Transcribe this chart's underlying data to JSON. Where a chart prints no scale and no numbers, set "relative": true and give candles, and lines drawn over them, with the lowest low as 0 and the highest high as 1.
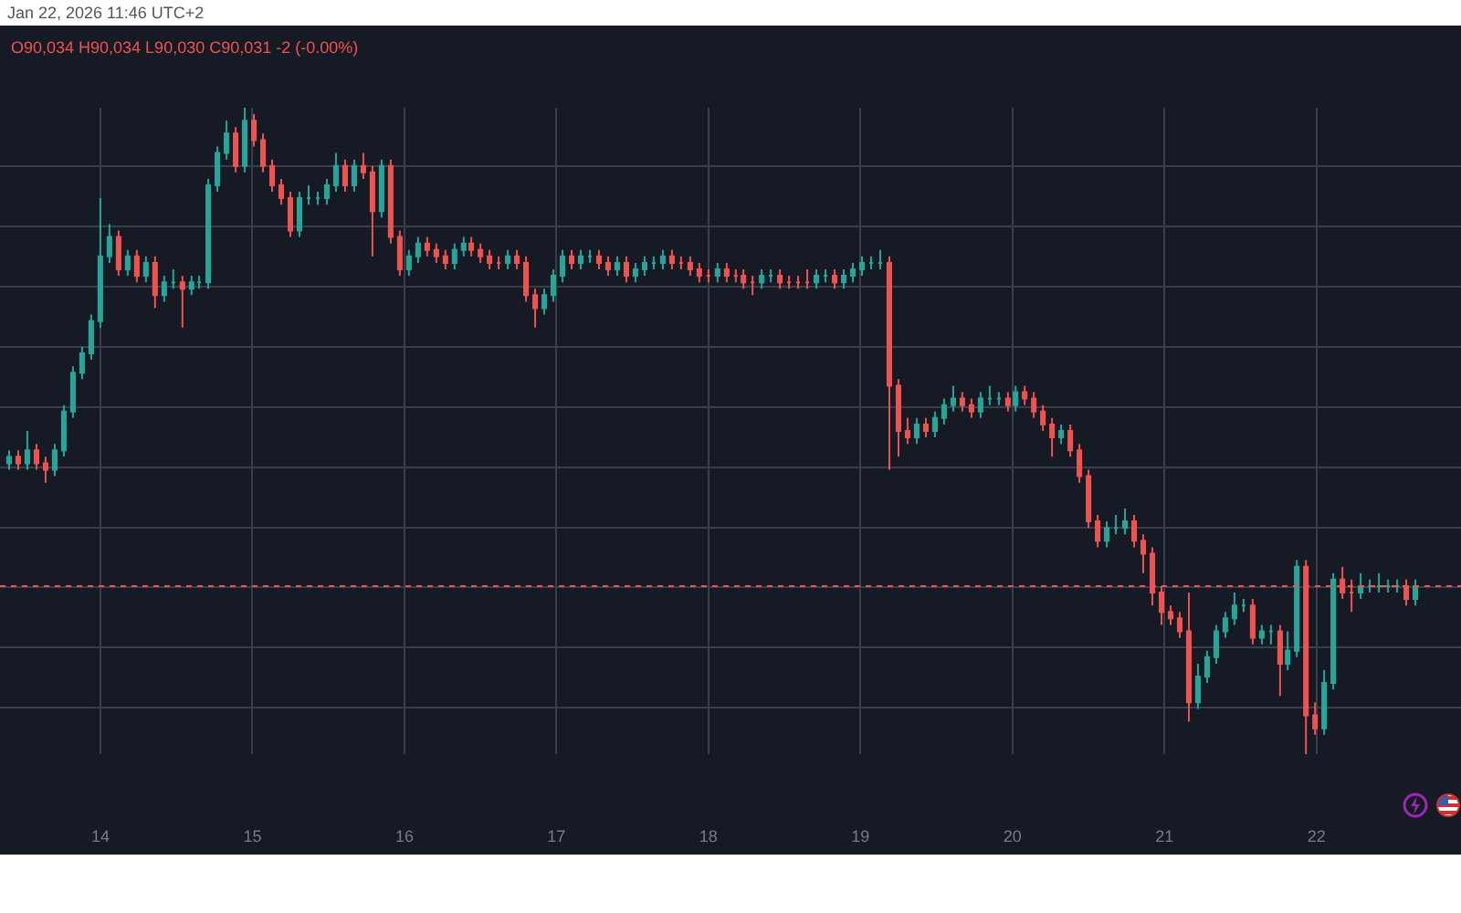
{
  "chart_data": {
    "type": "candlestick",
    "title": "Jan 22, 2026 11:46 UTC+2",
    "relative": true,
    "grid": true,
    "annotations": [
      "O90,034 H90,034 L90,030 C90,031 -2 (-0.00%)"
    ],
    "xlim": [
      13.34,
      22.95
    ],
    "xticks": [
      14,
      15,
      16,
      17,
      18,
      19,
      20,
      21,
      22
    ],
    "ref_lines": [
      {
        "axis": "y",
        "value": 0.26,
        "color": "#ef5350",
        "line_style": "dotted"
      }
    ],
    "x": [
      13.4,
      13.46,
      13.52,
      13.58,
      13.64,
      13.7,
      13.76,
      13.82,
      13.88,
      13.94,
      14.0,
      14.06,
      14.12,
      14.18,
      14.24,
      14.3,
      14.36,
      14.42,
      14.48,
      14.54,
      14.6,
      14.65,
      14.71,
      14.77,
      14.83,
      14.89,
      14.95,
      15.01,
      15.07,
      15.13,
      15.19,
      15.25,
      15.31,
      15.37,
      15.43,
      15.49,
      15.55,
      15.61,
      15.67,
      15.73,
      15.79,
      15.85,
      15.91,
      15.97,
      16.03,
      16.09,
      16.15,
      16.21,
      16.27,
      16.33,
      16.39,
      16.44,
      16.5,
      16.56,
      16.62,
      16.68,
      16.74,
      16.8,
      16.86,
      16.92,
      16.98,
      17.04,
      17.1,
      17.16,
      17.22,
      17.28,
      17.34,
      17.4,
      17.46,
      17.52,
      17.58,
      17.64,
      17.7,
      17.76,
      17.82,
      17.88,
      17.94,
      18.0,
      18.06,
      18.12,
      18.18,
      18.23,
      18.29,
      18.35,
      18.41,
      18.47,
      18.53,
      18.59,
      18.65,
      18.71,
      18.77,
      18.83,
      18.89,
      18.95,
      19.01,
      19.07,
      19.13,
      19.19,
      19.25,
      19.31,
      19.37,
      19.43,
      19.49,
      19.55,
      19.61,
      19.67,
      19.73,
      19.79,
      19.85,
      19.91,
      19.97,
      20.02,
      20.08,
      20.14,
      20.2,
      20.26,
      20.32,
      20.38,
      20.44,
      20.5,
      20.56,
      20.62,
      20.68,
      20.74,
      20.8,
      20.86,
      20.92,
      20.98,
      21.04,
      21.1,
      21.16,
      21.22,
      21.28,
      21.34,
      21.4,
      21.46,
      21.52,
      21.58,
      21.64,
      21.7,
      21.76,
      21.81,
      21.87,
      21.93,
      21.99,
      22.05,
      22.11,
      22.17,
      22.23,
      22.29,
      22.35,
      22.41,
      22.47,
      22.53,
      22.59,
      22.65
    ],
    "ohlc": [
      [
        0.45,
        0.47,
        0.44,
        0.46
      ],
      [
        0.46,
        0.47,
        0.44,
        0.45
      ],
      [
        0.45,
        0.5,
        0.44,
        0.47
      ],
      [
        0.47,
        0.48,
        0.44,
        0.45
      ],
      [
        0.45,
        0.46,
        0.42,
        0.44
      ],
      [
        0.44,
        0.48,
        0.43,
        0.47
      ],
      [
        0.47,
        0.54,
        0.46,
        0.53
      ],
      [
        0.53,
        0.6,
        0.52,
        0.59
      ],
      [
        0.59,
        0.63,
        0.58,
        0.62
      ],
      [
        0.62,
        0.68,
        0.61,
        0.67
      ],
      [
        0.67,
        0.86,
        0.66,
        0.77
      ],
      [
        0.77,
        0.82,
        0.76,
        0.8
      ],
      [
        0.8,
        0.81,
        0.74,
        0.75
      ],
      [
        0.75,
        0.78,
        0.74,
        0.77
      ],
      [
        0.77,
        0.78,
        0.73,
        0.74
      ],
      [
        0.74,
        0.77,
        0.73,
        0.76
      ],
      [
        0.76,
        0.77,
        0.69,
        0.71
      ],
      [
        0.71,
        0.74,
        0.7,
        0.73
      ],
      [
        0.73,
        0.75,
        0.72,
        0.73
      ],
      [
        0.73,
        0.74,
        0.66,
        0.72
      ],
      [
        0.72,
        0.74,
        0.71,
        0.73
      ],
      [
        0.73,
        0.74,
        0.72,
        0.73
      ],
      [
        0.73,
        0.89,
        0.72,
        0.88
      ],
      [
        0.88,
        0.94,
        0.87,
        0.93
      ],
      [
        0.93,
        0.98,
        0.92,
        0.96
      ],
      [
        0.96,
        0.97,
        0.9,
        0.91
      ],
      [
        0.91,
        1.0,
        0.9,
        0.98
      ],
      [
        0.98,
        0.99,
        0.94,
        0.95
      ],
      [
        0.95,
        0.96,
        0.9,
        0.91
      ],
      [
        0.91,
        0.92,
        0.87,
        0.88
      ],
      [
        0.88,
        0.89,
        0.85,
        0.86
      ],
      [
        0.86,
        0.87,
        0.8,
        0.81
      ],
      [
        0.81,
        0.87,
        0.8,
        0.86
      ],
      [
        0.86,
        0.88,
        0.85,
        0.86
      ],
      [
        0.86,
        0.87,
        0.85,
        0.86
      ],
      [
        0.86,
        0.89,
        0.85,
        0.88
      ],
      [
        0.88,
        0.93,
        0.87,
        0.91
      ],
      [
        0.91,
        0.92,
        0.87,
        0.88
      ],
      [
        0.88,
        0.92,
        0.87,
        0.91
      ],
      [
        0.91,
        0.93,
        0.89,
        0.9
      ],
      [
        0.9,
        0.91,
        0.77,
        0.84
      ],
      [
        0.84,
        0.92,
        0.83,
        0.91
      ],
      [
        0.91,
        0.92,
        0.79,
        0.8
      ],
      [
        0.8,
        0.81,
        0.74,
        0.75
      ],
      [
        0.75,
        0.78,
        0.74,
        0.77
      ],
      [
        0.77,
        0.8,
        0.76,
        0.79
      ],
      [
        0.79,
        0.8,
        0.77,
        0.78
      ],
      [
        0.78,
        0.79,
        0.76,
        0.77
      ],
      [
        0.77,
        0.78,
        0.75,
        0.76
      ],
      [
        0.76,
        0.79,
        0.75,
        0.78
      ],
      [
        0.78,
        0.8,
        0.77,
        0.79
      ],
      [
        0.79,
        0.8,
        0.77,
        0.78
      ],
      [
        0.78,
        0.79,
        0.76,
        0.77
      ],
      [
        0.77,
        0.78,
        0.75,
        0.76
      ],
      [
        0.76,
        0.77,
        0.75,
        0.76
      ],
      [
        0.76,
        0.78,
        0.75,
        0.77
      ],
      [
        0.77,
        0.78,
        0.75,
        0.76
      ],
      [
        0.76,
        0.77,
        0.7,
        0.71
      ],
      [
        0.71,
        0.72,
        0.66,
        0.69
      ],
      [
        0.69,
        0.72,
        0.68,
        0.71
      ],
      [
        0.71,
        0.75,
        0.7,
        0.74
      ],
      [
        0.74,
        0.78,
        0.73,
        0.77
      ],
      [
        0.77,
        0.78,
        0.75,
        0.76
      ],
      [
        0.76,
        0.78,
        0.75,
        0.77
      ],
      [
        0.77,
        0.78,
        0.76,
        0.77
      ],
      [
        0.77,
        0.78,
        0.75,
        0.76
      ],
      [
        0.76,
        0.77,
        0.74,
        0.75
      ],
      [
        0.75,
        0.77,
        0.74,
        0.76
      ],
      [
        0.76,
        0.77,
        0.73,
        0.74
      ],
      [
        0.74,
        0.76,
        0.73,
        0.75
      ],
      [
        0.75,
        0.77,
        0.74,
        0.76
      ],
      [
        0.76,
        0.77,
        0.75,
        0.76
      ],
      [
        0.76,
        0.78,
        0.75,
        0.77
      ],
      [
        0.77,
        0.78,
        0.75,
        0.76
      ],
      [
        0.76,
        0.77,
        0.75,
        0.76
      ],
      [
        0.76,
        0.77,
        0.74,
        0.75
      ],
      [
        0.75,
        0.76,
        0.73,
        0.74
      ],
      [
        0.74,
        0.75,
        0.73,
        0.74
      ],
      [
        0.74,
        0.76,
        0.73,
        0.75
      ],
      [
        0.75,
        0.76,
        0.73,
        0.74
      ],
      [
        0.74,
        0.75,
        0.73,
        0.74
      ],
      [
        0.74,
        0.75,
        0.72,
        0.73
      ],
      [
        0.73,
        0.74,
        0.71,
        0.73
      ],
      [
        0.73,
        0.75,
        0.72,
        0.74
      ],
      [
        0.74,
        0.75,
        0.73,
        0.74
      ],
      [
        0.74,
        0.75,
        0.72,
        0.73
      ],
      [
        0.73,
        0.74,
        0.72,
        0.73
      ],
      [
        0.73,
        0.74,
        0.72,
        0.73
      ],
      [
        0.73,
        0.75,
        0.72,
        0.73
      ],
      [
        0.73,
        0.75,
        0.72,
        0.74
      ],
      [
        0.74,
        0.75,
        0.73,
        0.74
      ],
      [
        0.74,
        0.75,
        0.72,
        0.73
      ],
      [
        0.73,
        0.75,
        0.72,
        0.74
      ],
      [
        0.74,
        0.76,
        0.73,
        0.75
      ],
      [
        0.75,
        0.77,
        0.74,
        0.76
      ],
      [
        0.76,
        0.77,
        0.75,
        0.76
      ],
      [
        0.76,
        0.78,
        0.75,
        0.76
      ],
      [
        0.76,
        0.77,
        0.44,
        0.57
      ],
      [
        0.57,
        0.58,
        0.46,
        0.5
      ],
      [
        0.5,
        0.52,
        0.48,
        0.49
      ],
      [
        0.49,
        0.52,
        0.48,
        0.51
      ],
      [
        0.51,
        0.52,
        0.49,
        0.5
      ],
      [
        0.5,
        0.53,
        0.49,
        0.52
      ],
      [
        0.52,
        0.55,
        0.51,
        0.54
      ],
      [
        0.54,
        0.57,
        0.53,
        0.55
      ],
      [
        0.55,
        0.56,
        0.53,
        0.54
      ],
      [
        0.54,
        0.55,
        0.52,
        0.53
      ],
      [
        0.53,
        0.56,
        0.52,
        0.55
      ],
      [
        0.55,
        0.57,
        0.54,
        0.55
      ],
      [
        0.55,
        0.56,
        0.54,
        0.55
      ],
      [
        0.55,
        0.56,
        0.53,
        0.54
      ],
      [
        0.54,
        0.57,
        0.53,
        0.56
      ],
      [
        0.56,
        0.57,
        0.54,
        0.55
      ],
      [
        0.55,
        0.56,
        0.52,
        0.53
      ],
      [
        0.53,
        0.54,
        0.5,
        0.51
      ],
      [
        0.51,
        0.52,
        0.46,
        0.49
      ],
      [
        0.49,
        0.51,
        0.48,
        0.5
      ],
      [
        0.5,
        0.51,
        0.46,
        0.47
      ],
      [
        0.47,
        0.48,
        0.42,
        0.43
      ],
      [
        0.43,
        0.44,
        0.35,
        0.36
      ],
      [
        0.36,
        0.37,
        0.32,
        0.33
      ],
      [
        0.33,
        0.36,
        0.32,
        0.35
      ],
      [
        0.35,
        0.37,
        0.34,
        0.35
      ],
      [
        0.35,
        0.38,
        0.34,
        0.36
      ],
      [
        0.36,
        0.37,
        0.32,
        0.33
      ],
      [
        0.33,
        0.34,
        0.28,
        0.31
      ],
      [
        0.31,
        0.32,
        0.23,
        0.25
      ],
      [
        0.25,
        0.26,
        0.2,
        0.22
      ],
      [
        0.22,
        0.23,
        0.2,
        0.21
      ],
      [
        0.21,
        0.22,
        0.18,
        0.19
      ],
      [
        0.19,
        0.25,
        0.05,
        0.08
      ],
      [
        0.08,
        0.14,
        0.07,
        0.12
      ],
      [
        0.12,
        0.16,
        0.11,
        0.15
      ],
      [
        0.15,
        0.2,
        0.14,
        0.19
      ],
      [
        0.19,
        0.22,
        0.18,
        0.21
      ],
      [
        0.21,
        0.25,
        0.2,
        0.23
      ],
      [
        0.23,
        0.24,
        0.22,
        0.23
      ],
      [
        0.23,
        0.24,
        0.17,
        0.18
      ],
      [
        0.18,
        0.2,
        0.17,
        0.19
      ],
      [
        0.19,
        0.2,
        0.17,
        0.19
      ],
      [
        0.19,
        0.2,
        0.09,
        0.14
      ],
      [
        0.14,
        0.19,
        0.13,
        0.16
      ],
      [
        0.16,
        0.3,
        0.15,
        0.29
      ],
      [
        0.29,
        0.3,
        0.0,
        0.06
      ],
      [
        0.06,
        0.08,
        0.03,
        0.04
      ],
      [
        0.04,
        0.13,
        0.03,
        0.11
      ],
      [
        0.11,
        0.28,
        0.1,
        0.27
      ],
      [
        0.27,
        0.29,
        0.24,
        0.25
      ],
      [
        0.25,
        0.27,
        0.22,
        0.25
      ],
      [
        0.25,
        0.28,
        0.24,
        0.26
      ],
      [
        0.26,
        0.27,
        0.25,
        0.26
      ],
      [
        0.26,
        0.28,
        0.25,
        0.26
      ],
      [
        0.26,
        0.27,
        0.25,
        0.26
      ],
      [
        0.26,
        0.27,
        0.25,
        0.26
      ],
      [
        0.26,
        0.27,
        0.23,
        0.24
      ],
      [
        0.24,
        0.27,
        0.23,
        0.26
      ]
    ]
  }
}
